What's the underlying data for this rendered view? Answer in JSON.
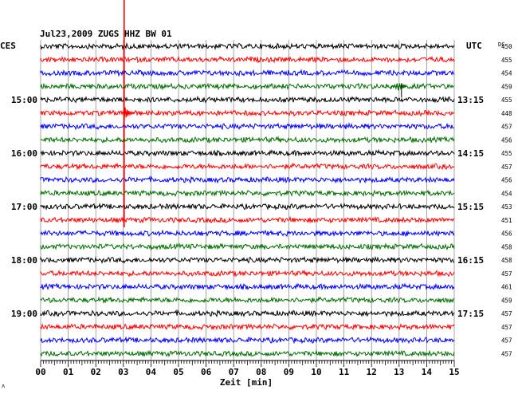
{
  "chart_data": {
    "type": "line",
    "title": "Jul23,2009   ZUGS HHZ BW 01",
    "left_timezone": "CES",
    "right_timezone": "UTC",
    "dc_label": "DC",
    "xlabel": "Zeit [min]",
    "x_ticks": [
      "00",
      "01",
      "02",
      "03",
      "04",
      "05",
      "06",
      "07",
      "08",
      "09",
      "10",
      "11",
      "12",
      "13",
      "14",
      "15"
    ],
    "xlim": [
      0,
      15
    ],
    "left_time_labels": [
      {
        "row": 4,
        "label": "15:00"
      },
      {
        "row": 8,
        "label": "16:00"
      },
      {
        "row": 12,
        "label": "17:00"
      },
      {
        "row": 16,
        "label": "18:00"
      },
      {
        "row": 20,
        "label": "19:00"
      }
    ],
    "right_time_labels": [
      {
        "row": 4,
        "label": "13:15"
      },
      {
        "row": 8,
        "label": "14:15"
      },
      {
        "row": 12,
        "label": "15:15"
      },
      {
        "row": 16,
        "label": "16:15"
      },
      {
        "row": 20,
        "label": "17:15"
      }
    ],
    "trace_colors": [
      "#000000",
      "#ff0000",
      "#0000ff",
      "#007000"
    ],
    "dc_offsets": [
      450,
      455,
      454,
      459,
      455,
      448,
      457,
      456,
      455,
      457,
      456,
      454,
      453,
      451,
      456,
      458,
      458,
      457,
      461,
      459,
      457,
      457,
      457,
      457
    ],
    "event": {
      "row": 5,
      "minute": 3.0
    },
    "small_event": {
      "row": 3,
      "minute": 13.0
    },
    "grid": true
  },
  "corner_mark": "ʌ"
}
